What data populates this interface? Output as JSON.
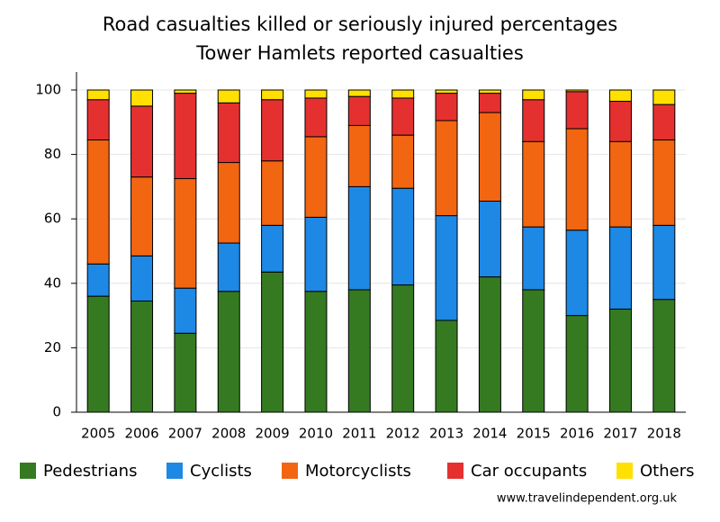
{
  "chart_data": {
    "type": "stacked_bar",
    "title": "Road casualties killed or seriously injured percentages",
    "subtitle": "Tower Hamlets reported casualties",
    "categories": [
      "2005",
      "2006",
      "2007",
      "2008",
      "2009",
      "2010",
      "2011",
      "2012",
      "2013",
      "2014",
      "2015",
      "2016",
      "2017",
      "2018"
    ],
    "series": [
      {
        "name": "Pedestrians",
        "color": "#357a21",
        "values": [
          36,
          34.5,
          24.5,
          37.5,
          43.5,
          37.5,
          38,
          39.5,
          28.5,
          42,
          38,
          30,
          32,
          35
        ]
      },
      {
        "name": "Cyclists",
        "color": "#1e88e5",
        "values": [
          10,
          14,
          14,
          15,
          14.5,
          23,
          32,
          30,
          32.5,
          23.5,
          19.5,
          26.5,
          25.5,
          23
        ]
      },
      {
        "name": "Motorcyclists",
        "color": "#f26511",
        "values": [
          38.5,
          24.5,
          34,
          25,
          20,
          25,
          19,
          16.5,
          29.5,
          27.5,
          26.5,
          31.5,
          26.5,
          26.5
        ]
      },
      {
        "name": "Car occupants",
        "color": "#e53030",
        "values": [
          12.5,
          22,
          26.5,
          18.5,
          19,
          12,
          9,
          11.5,
          8.5,
          6,
          13,
          11.5,
          12.5,
          11
        ]
      },
      {
        "name": "Others",
        "color": "#ffe000",
        "values": [
          3,
          5,
          1,
          4,
          3,
          2.5,
          2,
          2.5,
          1,
          1,
          3,
          0.5,
          3.5,
          4.5
        ]
      }
    ],
    "ylim": [
      0,
      100
    ],
    "yticks": [
      0,
      20,
      40,
      60,
      80,
      100
    ],
    "grid": true,
    "legend": "bottom",
    "source": "www.travelindependent.org.uk"
  }
}
